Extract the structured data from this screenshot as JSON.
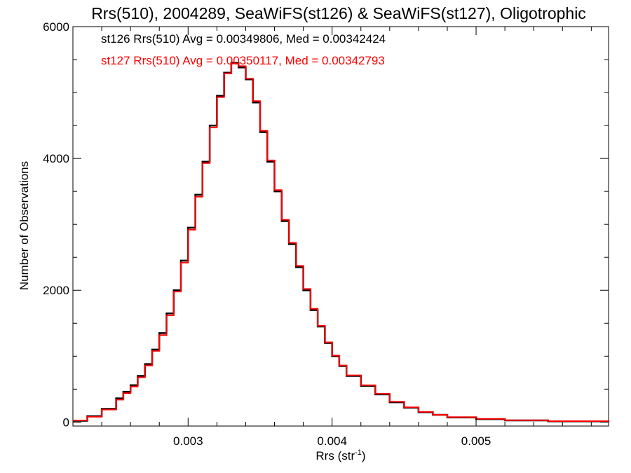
{
  "chart_data": {
    "type": "step-histogram",
    "title": "Rrs(510), 2004289, SeaWiFS(st126) & SeaWiFS(st127), Oligotrophic",
    "xlabel_base": "Rrs (str",
    "xlabel_sup": "-1",
    "xlabel_close": ")",
    "ylabel": "Number of Observations",
    "xlim": [
      0.0022,
      0.00592
    ],
    "ylim": [
      -60,
      6000
    ],
    "x_ticks": [
      0.003,
      0.004,
      0.005
    ],
    "x_tick_labels": [
      "0.003",
      "0.004",
      "0.005"
    ],
    "y_ticks": [
      0,
      2000,
      4000,
      6000
    ],
    "y_tick_labels": [
      "0",
      "2000",
      "4000",
      "6000"
    ],
    "annotations": [
      {
        "text": "st126 Rrs(510) Avg = 0.00349806, Med = 0.00342424",
        "color": "#000000"
      },
      {
        "text": "st127 Rrs(510) Avg = 0.00350117, Med = 0.00342793",
        "color": "#ff0000"
      }
    ],
    "x": [
      0.0022,
      0.0023,
      0.0024,
      0.0025,
      0.00255,
      0.0026,
      0.00265,
      0.0027,
      0.00275,
      0.0028,
      0.00285,
      0.0029,
      0.00295,
      0.003,
      0.00305,
      0.0031,
      0.00315,
      0.0032,
      0.00325,
      0.0033,
      0.00335,
      0.0034,
      0.00345,
      0.0035,
      0.00355,
      0.0036,
      0.00365,
      0.0037,
      0.00375,
      0.0038,
      0.00385,
      0.0039,
      0.00395,
      0.004,
      0.00405,
      0.0041,
      0.0042,
      0.0043,
      0.0044,
      0.0045,
      0.0046,
      0.0047,
      0.0048,
      0.005,
      0.0052,
      0.0055,
      0.00592
    ],
    "series": [
      {
        "name": "st126",
        "color": "#000000",
        "values": [
          20,
          90,
          200,
          360,
          460,
          560,
          700,
          880,
          1100,
          1350,
          1650,
          2000,
          2450,
          2950,
          3450,
          3950,
          4500,
          4950,
          5300,
          5450,
          5380,
          5200,
          4850,
          4400,
          3950,
          3500,
          3050,
          2700,
          2350,
          2000,
          1700,
          1450,
          1200,
          1000,
          850,
          700,
          550,
          420,
          300,
          220,
          150,
          110,
          70,
          45,
          25,
          12,
          5
        ]
      },
      {
        "name": "st127",
        "color": "#ff0000",
        "values": [
          25,
          80,
          190,
          340,
          440,
          540,
          680,
          860,
          1080,
          1320,
          1620,
          1980,
          2420,
          2920,
          3420,
          3930,
          4470,
          4930,
          5290,
          5440,
          5400,
          5210,
          4870,
          4420,
          3970,
          3520,
          3070,
          2720,
          2370,
          2020,
          1720,
          1460,
          1210,
          1010,
          860,
          710,
          560,
          430,
          310,
          225,
          155,
          110,
          75,
          48,
          28,
          14,
          6
        ]
      }
    ]
  }
}
